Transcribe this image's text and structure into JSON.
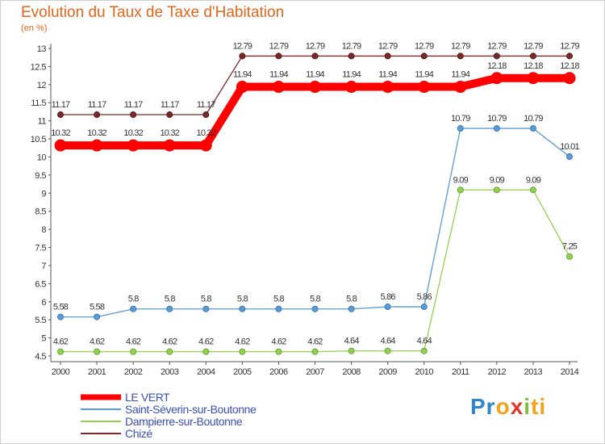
{
  "header": {
    "title": "Evolution du Taux de Taxe d'Habitation",
    "unit": "(en %)"
  },
  "chart_data": {
    "type": "line",
    "title": "Evolution du Taux de Taxe d'Habitation",
    "ylabel": "(en %)",
    "xlabel": "",
    "x": [
      2000,
      2001,
      2002,
      2003,
      2004,
      2005,
      2006,
      2007,
      2008,
      2009,
      2010,
      2011,
      2012,
      2013,
      2014
    ],
    "ylim": [
      4.5,
      13
    ],
    "yticks": [
      4.5,
      5,
      5.5,
      6,
      6.5,
      7,
      7.5,
      8,
      8.5,
      9,
      9.5,
      10,
      10.5,
      11,
      11.5,
      12,
      12.5,
      13
    ],
    "grid": false,
    "legend_position": "bottom-left",
    "series": [
      {
        "name": "LE VERT",
        "color": "#ff0000",
        "style": "thick",
        "values": [
          10.32,
          10.32,
          10.32,
          10.32,
          10.32,
          11.94,
          11.94,
          11.94,
          11.94,
          11.94,
          11.94,
          11.94,
          12.18,
          12.18,
          12.18
        ],
        "labels": [
          "10.32",
          "10.32",
          "10.32",
          "10.32",
          "10.32",
          "11.94",
          "11.94",
          "11.94",
          "11.94",
          "11.94",
          "11.94",
          "11.94",
          "12.18",
          "12.18",
          "12.18"
        ]
      },
      {
        "name": "Saint-Séverin-sur-Boutonne",
        "color": "#5b9bd5",
        "style": "thin",
        "values": [
          5.58,
          5.58,
          5.8,
          5.8,
          5.8,
          5.8,
          5.8,
          5.8,
          5.8,
          5.86,
          5.86,
          10.79,
          10.79,
          10.79,
          10.01
        ],
        "labels": [
          "5.58",
          "5.58",
          "5.8",
          "5.8",
          "5.8",
          "5.8",
          "5.8",
          "5.8",
          "5.8",
          "5.86",
          "5.86",
          "10.79",
          "10.79",
          "10.79",
          "10.01"
        ]
      },
      {
        "name": "Dampierre-sur-Boutonne",
        "color": "#92d050",
        "style": "thin",
        "values": [
          4.62,
          4.62,
          4.62,
          4.62,
          4.62,
          4.62,
          4.62,
          4.62,
          4.64,
          4.64,
          4.64,
          9.09,
          9.09,
          9.09,
          7.25
        ],
        "labels": [
          "4.62",
          "4.62",
          "4.62",
          "4.62",
          "4.62",
          "4.62",
          "4.62",
          "4.62",
          "4.64",
          "4.64",
          "4.64",
          "9.09",
          "9.09",
          "9.09",
          "7.25"
        ]
      },
      {
        "name": "Chizé",
        "color": "#7b2828",
        "style": "thin",
        "values": [
          11.17,
          11.17,
          11.17,
          11.17,
          11.17,
          12.79,
          12.79,
          12.79,
          12.79,
          12.79,
          12.79,
          12.79,
          12.79,
          12.79,
          12.79
        ],
        "labels": [
          "11.17",
          "11.17",
          "11.17",
          "11.17",
          "11.17",
          "12.79",
          "12.79",
          "12.79",
          "12.79",
          "12.79",
          "12.79",
          "12.79",
          "12.79",
          "12.79",
          "12.79"
        ]
      }
    ]
  },
  "branding": {
    "logo_text": [
      "Pr",
      "o",
      "x",
      "i",
      "ti"
    ],
    "logo_colors": [
      "#2f86c8",
      "#f2a31b",
      "#e0382b",
      "#7cbf3a",
      "#f2a31b"
    ]
  }
}
